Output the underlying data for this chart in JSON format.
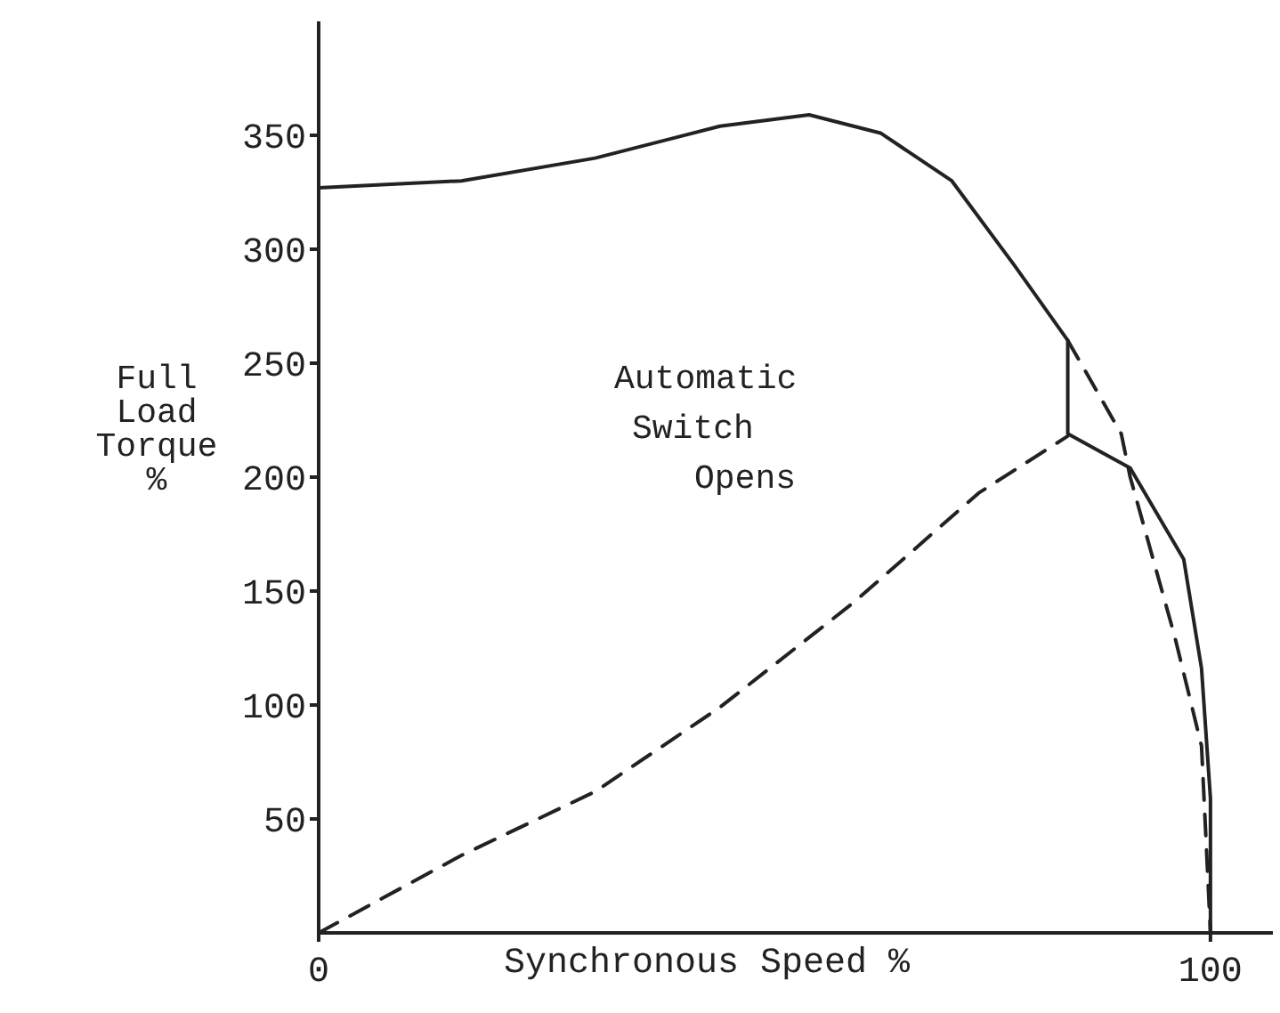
{
  "chart_data": {
    "type": "line",
    "xlabel": "Synchronous Speed %",
    "ylabel": "Full Load Torque %",
    "xlim": [
      0,
      107
    ],
    "ylim": [
      0,
      400
    ],
    "xticks": [
      0,
      100
    ],
    "yticks": [
      50,
      100,
      150,
      200,
      250,
      300,
      350
    ],
    "grid": false,
    "marker": "none",
    "annotations": [
      "Automatic\nSwitch\nOpens"
    ],
    "series": [
      {
        "color": "#222222",
        "line_style": "solid",
        "x": [
          0,
          16,
          31,
          45,
          55,
          63,
          71,
          78,
          84,
          84,
          91,
          97,
          99,
          100,
          100
        ],
        "values": [
          327,
          330,
          340,
          354,
          359,
          351,
          330,
          293,
          260,
          219,
          204,
          164,
          116,
          59,
          0
        ]
      },
      {
        "color": "#222222",
        "line_style": "dashed",
        "x": [
          0,
          16,
          31,
          45,
          60,
          74,
          84
        ],
        "values": [
          0,
          34,
          62,
          99,
          145,
          193,
          218
        ]
      },
      {
        "color": "#222222",
        "line_style": "dashed",
        "x": [
          84,
          90,
          91,
          96,
          99,
          100
        ],
        "values": [
          260,
          219,
          200,
          130,
          82,
          0
        ]
      }
    ]
  }
}
